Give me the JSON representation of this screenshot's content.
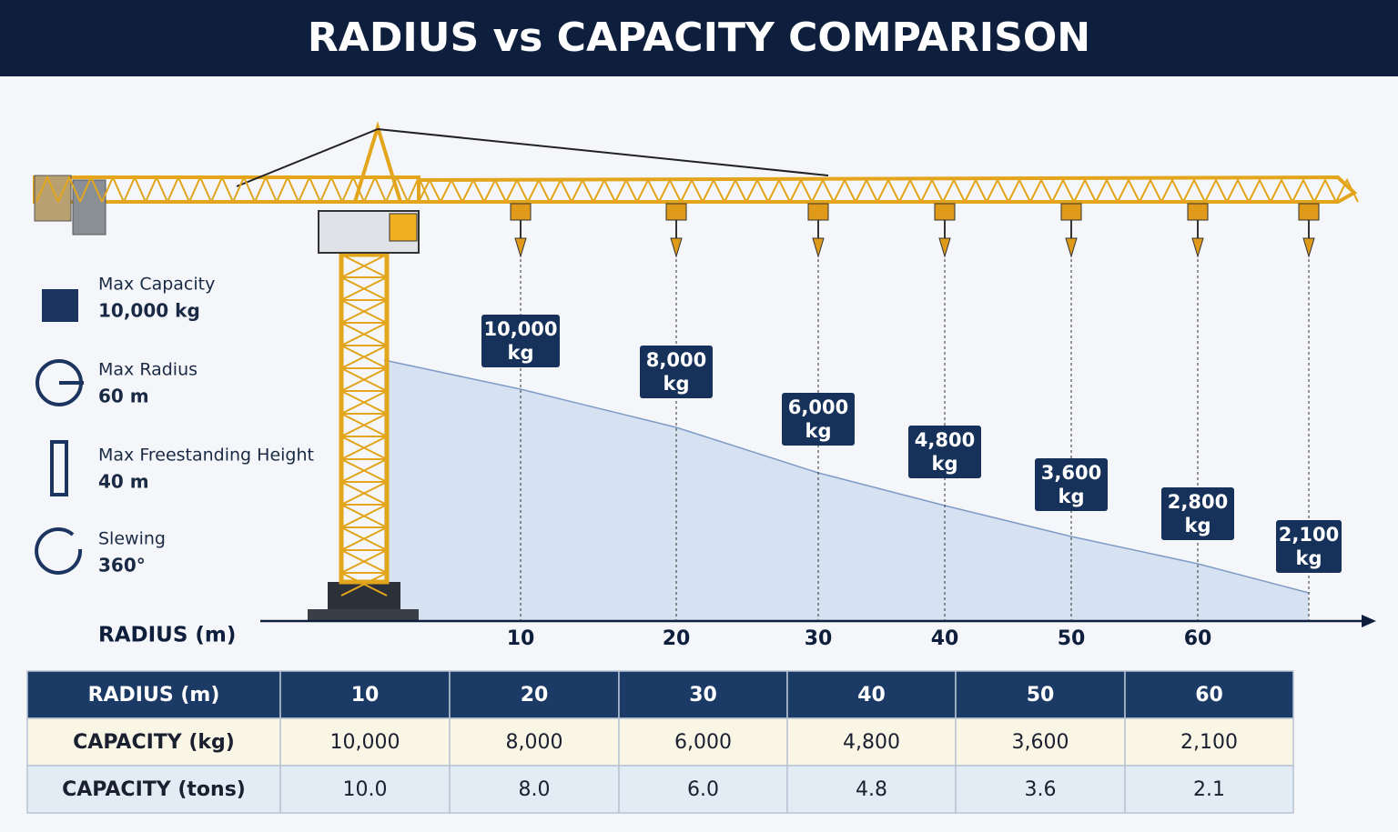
{
  "header": {
    "title": "RADIUS vs CAPACITY COMPARISON"
  },
  "specs": [
    {
      "label": "Max Capacity",
      "value": "10,000 kg"
    },
    {
      "label": "Max Radius",
      "value": "60 m"
    },
    {
      "label": "Max Freestanding Height",
      "value": "40 m"
    },
    {
      "label": "Slewing",
      "value": "360°"
    }
  ],
  "diagram": {
    "axis_label": "RADIUS (m)",
    "ticks": [
      "10",
      "20",
      "30",
      "40",
      "50",
      "60"
    ],
    "hook_labels": [
      [
        "10,000",
        "kg"
      ],
      [
        "8,000",
        "kg"
      ],
      [
        "6,000",
        "kg"
      ],
      [
        "4,800",
        "kg"
      ],
      [
        "3,600",
        "kg"
      ],
      [
        "2,800",
        "kg"
      ],
      [
        "2,100",
        "kg"
      ]
    ]
  },
  "table": {
    "header": [
      "RADIUS (m)",
      "10",
      "20",
      "30",
      "40",
      "50",
      "60"
    ],
    "rows": [
      [
        "CAPACITY (kg)",
        "10,000",
        "8,000",
        "6,000",
        "4,800",
        "3,600",
        "2,100"
      ],
      [
        "CAPACITY (tons)",
        "10.0",
        "8.0",
        "6.0",
        "4.8",
        "3.6",
        "2.1"
      ]
    ]
  }
}
